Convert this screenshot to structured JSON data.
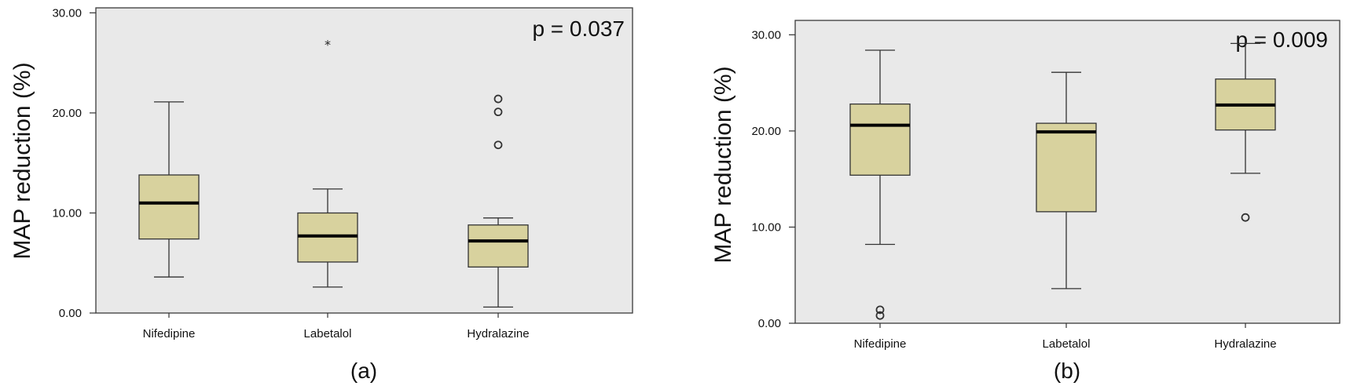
{
  "chart_data": [
    {
      "type": "boxplot",
      "panel_label": "(a)",
      "annotation": "p = 0.037",
      "ylabel": "MAP reduction (%)",
      "xlabel": "",
      "ylim": [
        0,
        30.5
      ],
      "yticks": [
        "0.00",
        "10.00",
        "20.00",
        "30.00"
      ],
      "ytick_values": [
        0,
        10,
        20,
        30
      ],
      "categories": [
        "Nifedipine",
        "Labetalol",
        "Hydralazine"
      ],
      "boxes": [
        {
          "category": "Nifedipine",
          "min": 3.6,
          "q1": 7.4,
          "median": 11.0,
          "q3": 13.8,
          "max": 21.1,
          "outliers": [],
          "extremes": []
        },
        {
          "category": "Labetalol",
          "min": 2.6,
          "q1": 5.1,
          "median": 7.7,
          "q3": 10.0,
          "max": 12.4,
          "outliers": [],
          "extremes": [
            27.0
          ]
        },
        {
          "category": "Hydralazine",
          "min": 0.6,
          "q1": 4.6,
          "median": 7.2,
          "q3": 8.8,
          "max": 9.5,
          "outliers": [
            16.8,
            20.1,
            21.4
          ],
          "extremes": []
        }
      ]
    },
    {
      "type": "boxplot",
      "panel_label": "(b)",
      "annotation": "p = 0.009",
      "ylabel": "MAP reduction (%)",
      "xlabel": "",
      "ylim": [
        0,
        31.5
      ],
      "yticks": [
        "0.00",
        "10.00",
        "20.00",
        "30.00"
      ],
      "ytick_values": [
        0,
        10,
        20,
        30
      ],
      "categories": [
        "Nifedipine",
        "Labetalol",
        "Hydralazine"
      ],
      "boxes": [
        {
          "category": "Nifedipine",
          "min": 8.2,
          "q1": 15.4,
          "median": 20.6,
          "q3": 22.8,
          "max": 28.4,
          "outliers": [
            0.8,
            1.4
          ],
          "extremes": []
        },
        {
          "category": "Labetalol",
          "min": 3.6,
          "q1": 11.6,
          "median": 19.9,
          "q3": 20.8,
          "max": 26.1,
          "outliers": [],
          "extremes": []
        },
        {
          "category": "Hydralazine",
          "min": 15.6,
          "q1": 20.1,
          "median": 22.7,
          "q3": 25.4,
          "max": 29.1,
          "outliers": [
            11.0
          ],
          "extremes": []
        }
      ]
    }
  ],
  "extreme_marker": "*"
}
